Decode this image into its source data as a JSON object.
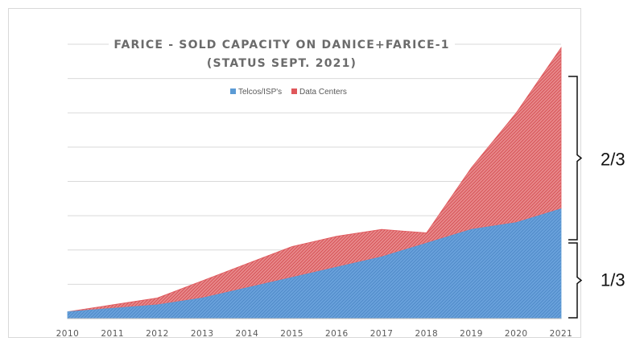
{
  "chart_data": {
    "type": "area",
    "stacked": true,
    "title_lines": [
      "FARICE - SOLD CAPACITY ON DANICE+FARICE-1",
      "(STATUS SEPT. 2021)"
    ],
    "x": [
      "2010",
      "2011",
      "2012",
      "2013",
      "2014",
      "2015",
      "2016",
      "2017",
      "2018",
      "2019",
      "2020",
      "2021"
    ],
    "ylim": [
      0,
      8
    ],
    "grid": "horizontal",
    "legend_position": "top",
    "series": [
      {
        "name": "Telcos/ISP's",
        "color": "#5b9bd5",
        "values": [
          0.2,
          0.3,
          0.4,
          0.6,
          0.9,
          1.2,
          1.5,
          1.8,
          2.2,
          2.6,
          2.8,
          3.2
        ]
      },
      {
        "name": "Data Centers",
        "color": "#e0575b",
        "values": [
          0.0,
          0.1,
          0.2,
          0.5,
          0.7,
          0.9,
          0.9,
          0.8,
          0.3,
          1.8,
          3.2,
          4.7
        ]
      }
    ],
    "annotations": [
      {
        "label": "2/3",
        "covers": "Data Centers"
      },
      {
        "label": "1/3",
        "covers": "Telcos/ISP's"
      }
    ]
  }
}
